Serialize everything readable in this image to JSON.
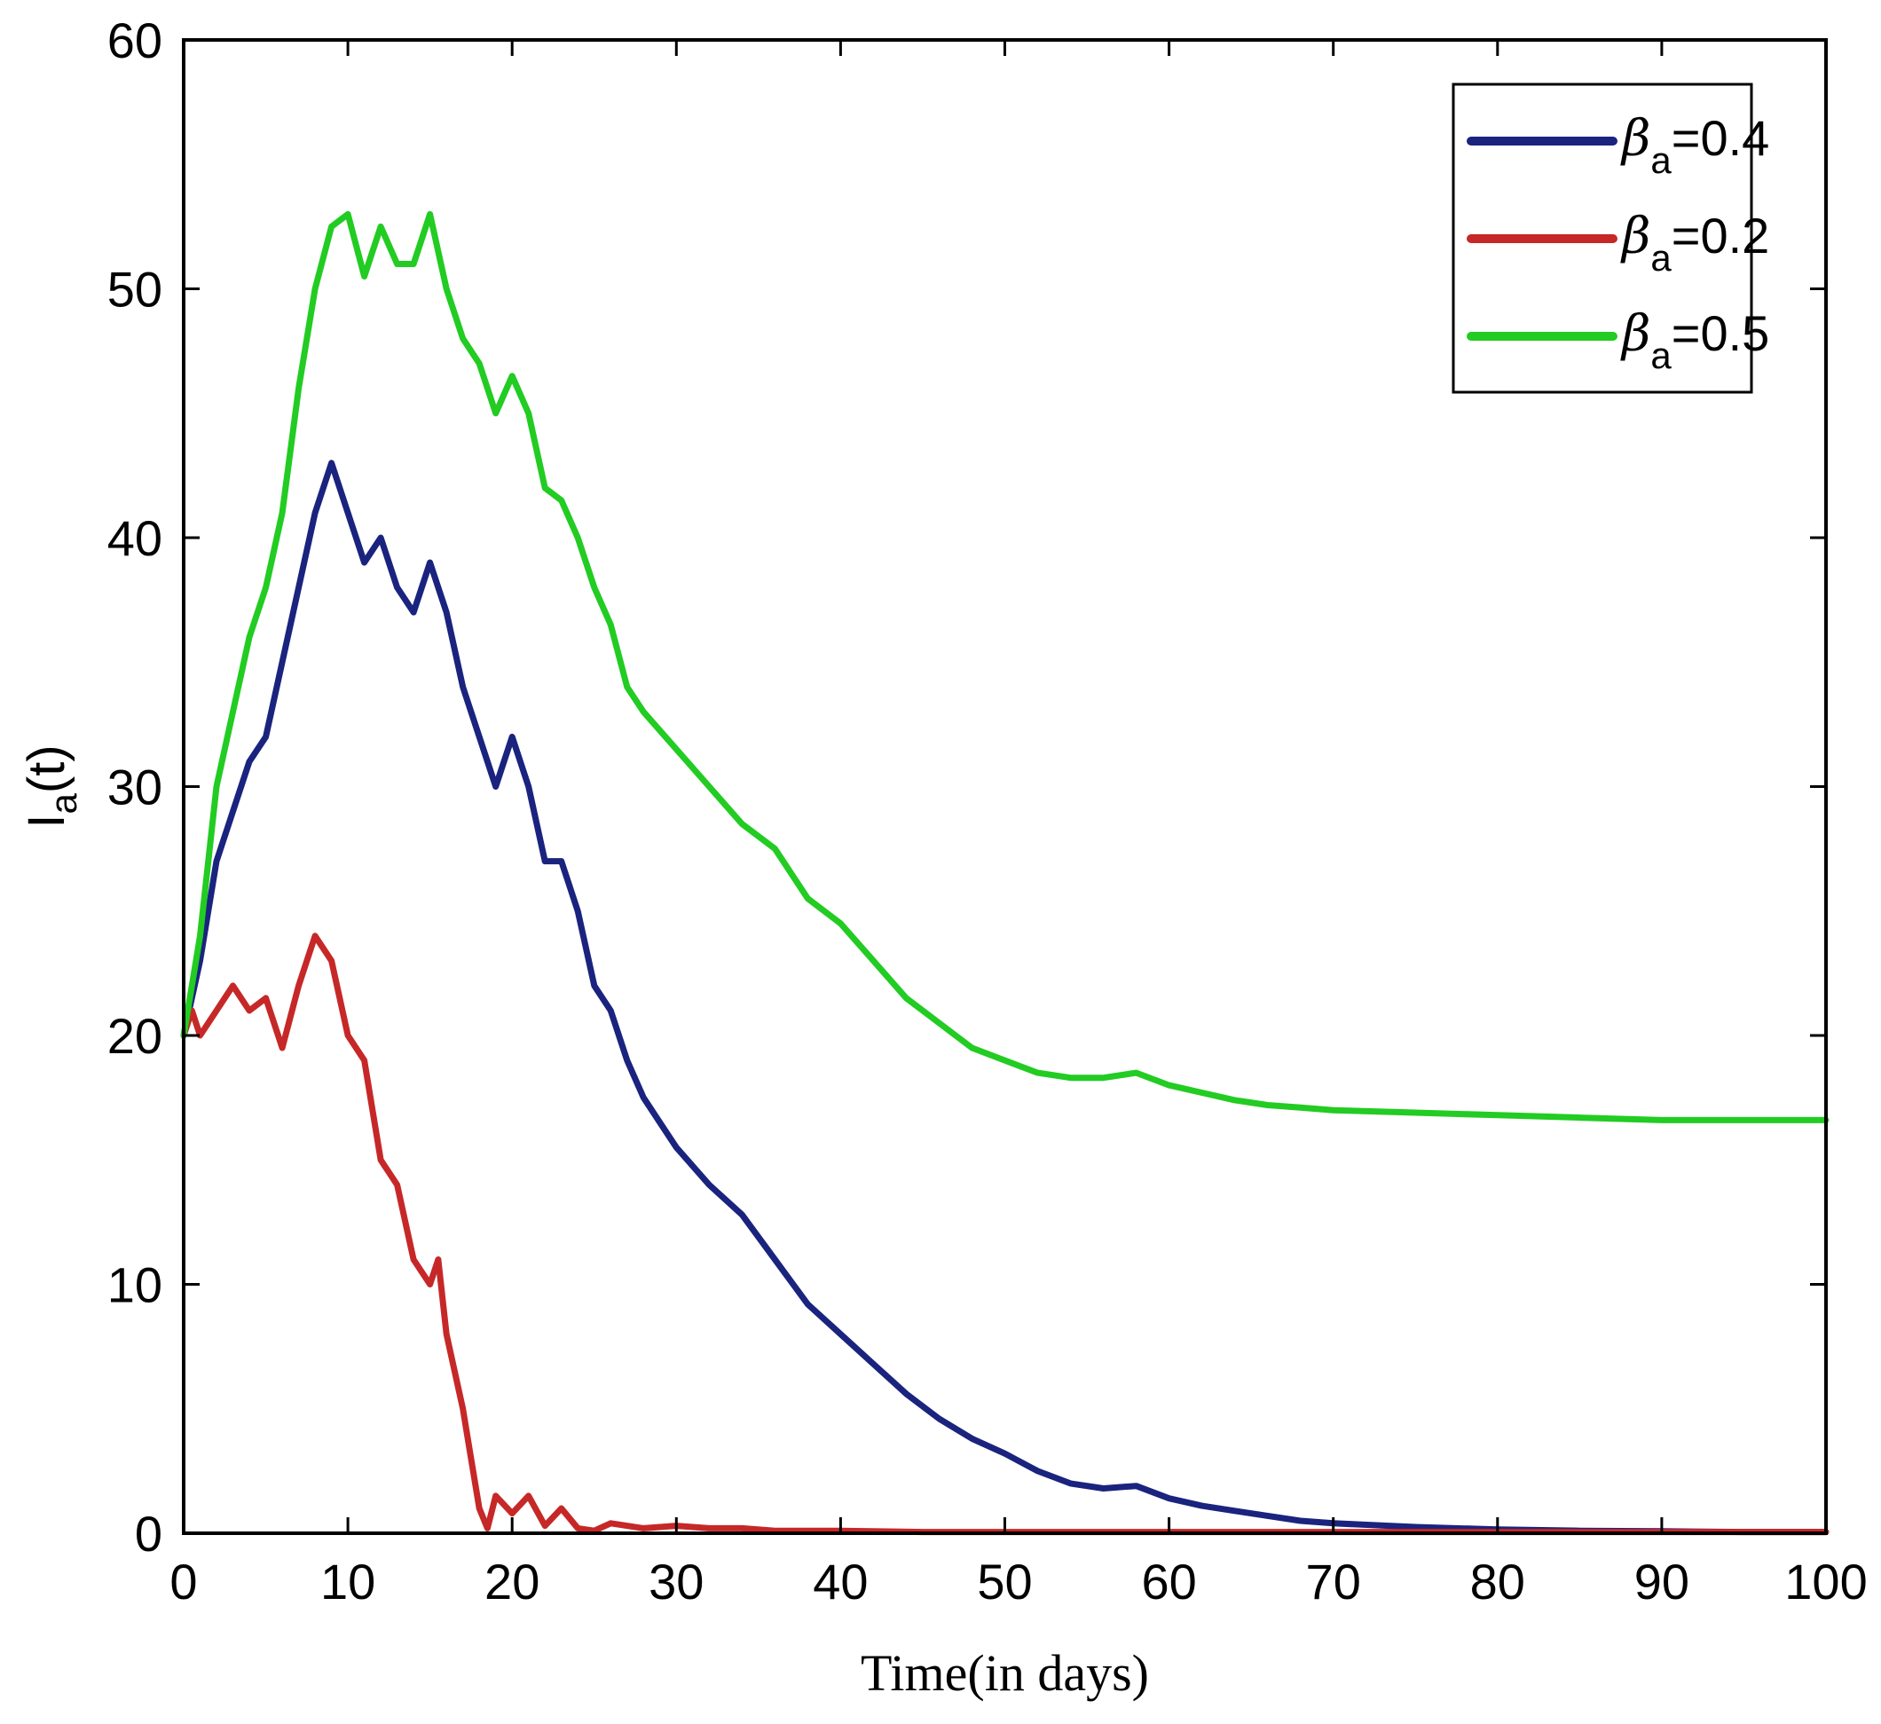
{
  "chart_data": {
    "type": "line",
    "xlabel": "Time(in days)",
    "ylabel": "I",
    "ylabel_sub": "a",
    "ylabel_suffix": "(t)",
    "xlim": [
      0,
      100
    ],
    "ylim": [
      0,
      60
    ],
    "xticks": [
      0,
      10,
      20,
      30,
      40,
      50,
      60,
      70,
      80,
      90,
      100
    ],
    "yticks": [
      0,
      10,
      20,
      30,
      40,
      50,
      60
    ],
    "grid": false,
    "legend_position": "top-right",
    "legend_symbol": "β",
    "legend_subscript": "a",
    "series": [
      {
        "name": "=0.4",
        "color": "#1a237e",
        "x": [
          0,
          1,
          2,
          3,
          4,
          5,
          6,
          7,
          8,
          9,
          10,
          11,
          12,
          13,
          14,
          15,
          16,
          17,
          18,
          19,
          20,
          21,
          22,
          23,
          24,
          25,
          26,
          27,
          28,
          29,
          30,
          32,
          34,
          36,
          38,
          40,
          42,
          44,
          46,
          48,
          50,
          52,
          54,
          56,
          58,
          60,
          62,
          64,
          66,
          68,
          70,
          75,
          80,
          85,
          90,
          95,
          100
        ],
        "y": [
          20,
          23,
          27,
          29,
          31,
          32,
          35,
          38,
          41,
          43,
          41,
          39,
          40,
          38,
          37,
          39,
          37,
          34,
          32,
          30,
          32,
          30,
          27,
          27,
          25,
          22,
          21,
          19,
          17.5,
          16.5,
          15.5,
          14,
          12.8,
          11,
          9.2,
          8,
          6.8,
          5.6,
          4.6,
          3.8,
          3.2,
          2.5,
          2.0,
          1.8,
          1.9,
          1.4,
          1.1,
          0.9,
          0.7,
          0.5,
          0.4,
          0.25,
          0.15,
          0.1,
          0.08,
          0.05,
          0.05
        ]
      },
      {
        "name": "=0.2",
        "color": "#c62828",
        "x": [
          0,
          0.5,
          1,
          2,
          3,
          4,
          5,
          6,
          7,
          8,
          9,
          10,
          11,
          12,
          13,
          14,
          15,
          15.5,
          16,
          17,
          17.5,
          18,
          18.5,
          19,
          20,
          21,
          22,
          23,
          24,
          25,
          26,
          28,
          30,
          32,
          34,
          36,
          40,
          45,
          50,
          60,
          70,
          80,
          90,
          100
        ],
        "y": [
          20,
          21,
          20,
          21,
          22,
          21,
          21.5,
          19.5,
          22,
          24,
          23,
          20,
          19,
          15,
          14,
          11,
          10,
          11,
          8,
          5,
          3,
          1,
          0.2,
          1.5,
          0.8,
          1.5,
          0.3,
          1.0,
          0.2,
          0.1,
          0.4,
          0.2,
          0.3,
          0.2,
          0.2,
          0.1,
          0.1,
          0.05,
          0.05,
          0.05,
          0.05,
          0.05,
          0.05,
          0.05
        ]
      },
      {
        "name": "=0.5",
        "color": "#22cc22",
        "x": [
          0,
          1,
          2,
          3,
          4,
          5,
          6,
          7,
          8,
          9,
          10,
          11,
          12,
          13,
          14,
          15,
          16,
          17,
          18,
          19,
          20,
          21,
          22,
          23,
          24,
          25,
          26,
          27,
          28,
          30,
          32,
          34,
          36,
          38,
          40,
          42,
          44,
          46,
          48,
          50,
          52,
          54,
          56,
          58,
          60,
          62,
          64,
          66,
          68,
          70,
          75,
          80,
          85,
          90,
          95,
          100
        ],
        "y": [
          20,
          24,
          30,
          33,
          36,
          38,
          41,
          46,
          50,
          52.5,
          53,
          50.5,
          52.5,
          51,
          51,
          53,
          50,
          48,
          47,
          45,
          46.5,
          45,
          42,
          41.5,
          40,
          38,
          36.5,
          34,
          33,
          31.5,
          30,
          28.5,
          27.5,
          25.5,
          24.5,
          23,
          21.5,
          20.5,
          19.5,
          19,
          18.5,
          18.3,
          18.3,
          18.5,
          18,
          17.7,
          17.4,
          17.2,
          17.1,
          17.0,
          16.9,
          16.8,
          16.7,
          16.6,
          16.6,
          16.6
        ]
      }
    ]
  }
}
